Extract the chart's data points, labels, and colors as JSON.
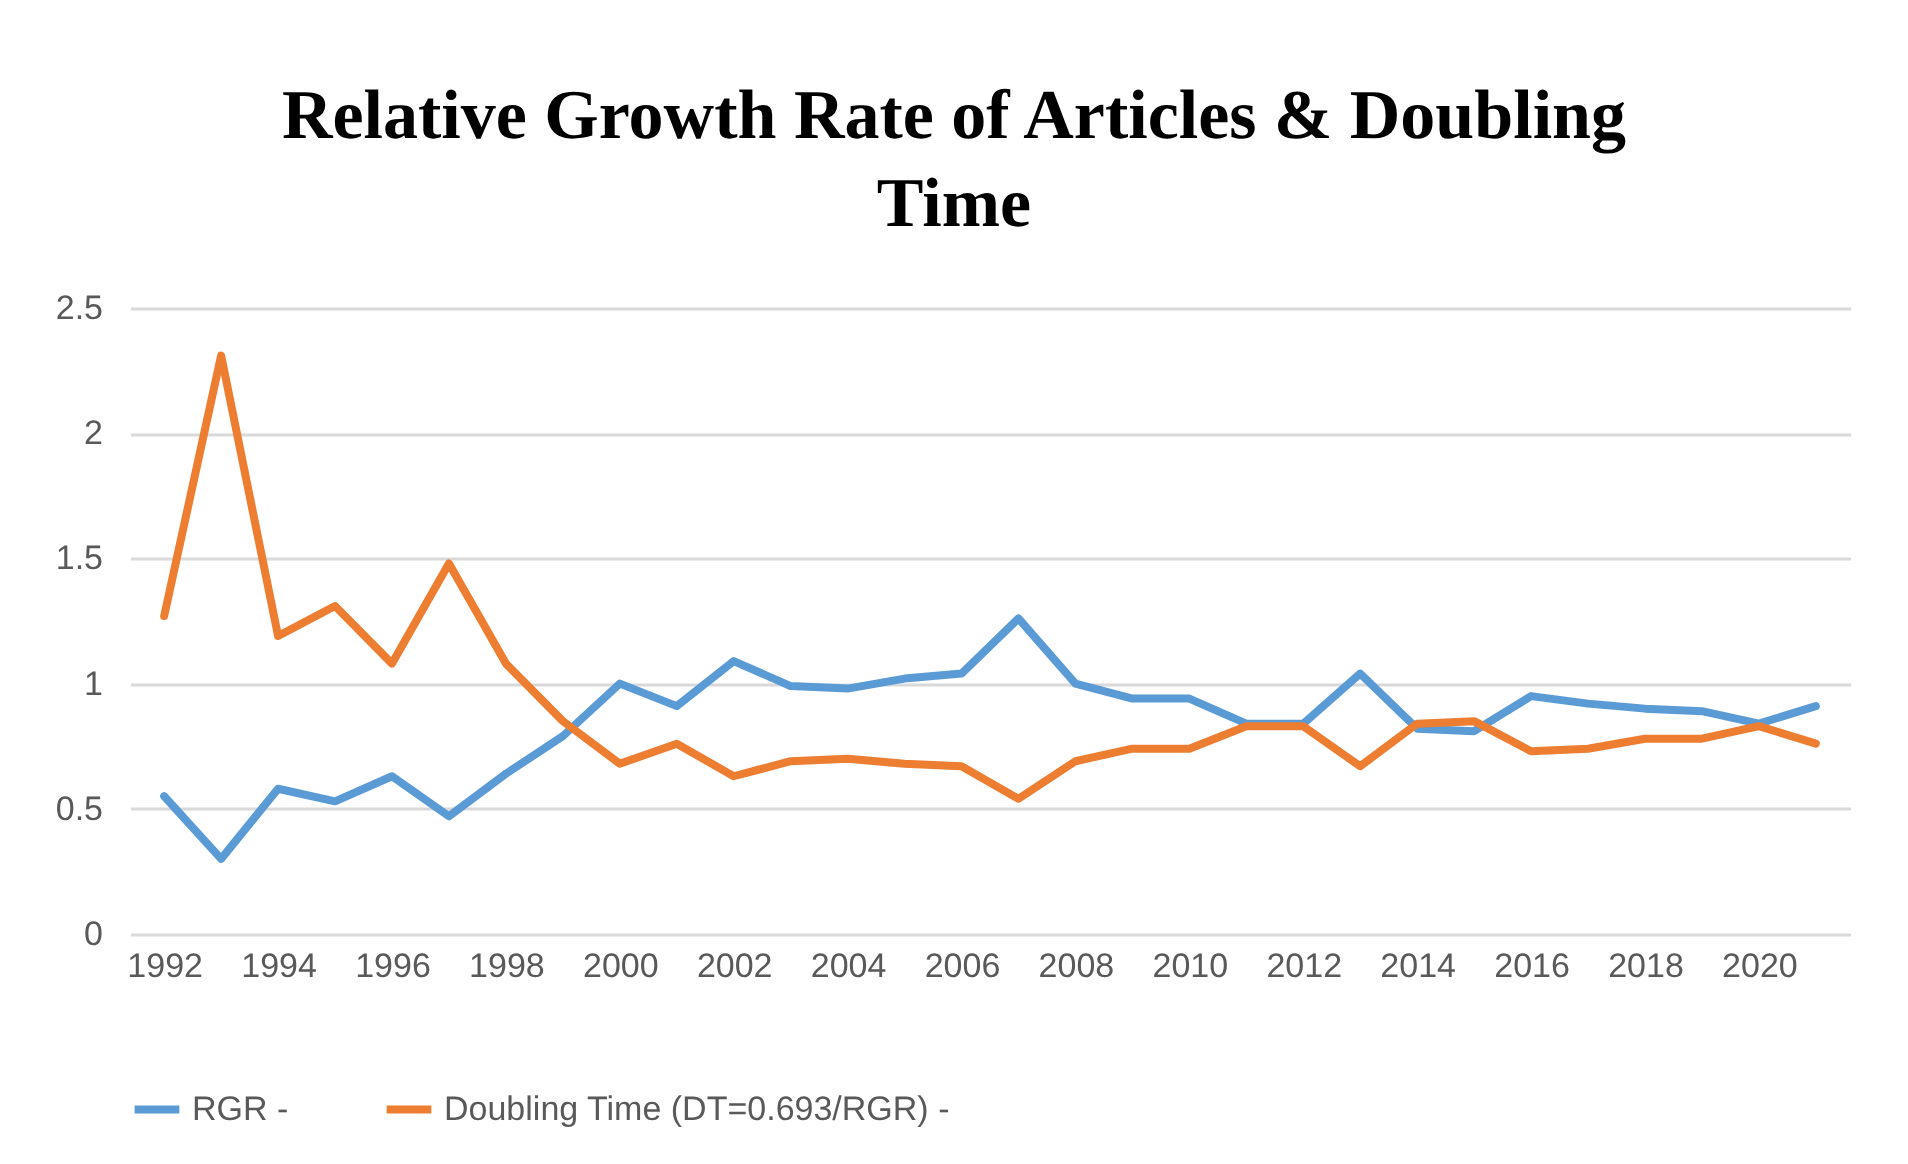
{
  "chart_data": {
    "type": "line",
    "title": "Relative Growth Rate of Articles & Doubling Time",
    "x": [
      1992,
      1993,
      1994,
      1995,
      1996,
      1997,
      1998,
      1999,
      2000,
      2001,
      2002,
      2003,
      2004,
      2005,
      2006,
      2007,
      2008,
      2009,
      2010,
      2011,
      2012,
      2013,
      2014,
      2015,
      2016,
      2017,
      2018,
      2019,
      2020,
      2021
    ],
    "series": [
      {
        "name": "RGR -",
        "color": "#5b9bd5",
        "values": [
          0.55,
          0.3,
          0.58,
          0.53,
          0.63,
          0.47,
          0.64,
          0.79,
          1.0,
          0.91,
          1.09,
          0.99,
          0.98,
          1.02,
          1.04,
          1.26,
          1.0,
          0.94,
          0.94,
          0.84,
          0.84,
          1.04,
          0.82,
          0.81,
          0.95,
          0.92,
          0.9,
          0.89,
          0.84,
          0.91
        ]
      },
      {
        "name": "Doubling Time (DT=0.693/RGR) -",
        "color": "#ed7d31",
        "values": [
          1.27,
          2.31,
          1.19,
          1.31,
          1.08,
          1.48,
          1.08,
          0.85,
          0.68,
          0.76,
          0.63,
          0.69,
          0.7,
          0.68,
          0.67,
          0.54,
          0.69,
          0.74,
          0.74,
          0.83,
          0.83,
          0.67,
          0.84,
          0.85,
          0.73,
          0.74,
          0.78,
          0.78,
          0.83,
          0.76
        ]
      }
    ],
    "xlim": [
      1991.4,
      2021.6
    ],
    "xticks": [
      1992,
      1994,
      1996,
      1998,
      2000,
      2002,
      2004,
      2006,
      2008,
      2010,
      2012,
      2014,
      2016,
      2018,
      2020
    ],
    "ylim": [
      0,
      2.5
    ],
    "yticks": [
      0,
      0.5,
      1,
      1.5,
      2,
      2.5
    ],
    "grid": "y",
    "legend": "bottom",
    "marker": "none",
    "line_style": "solid"
  }
}
